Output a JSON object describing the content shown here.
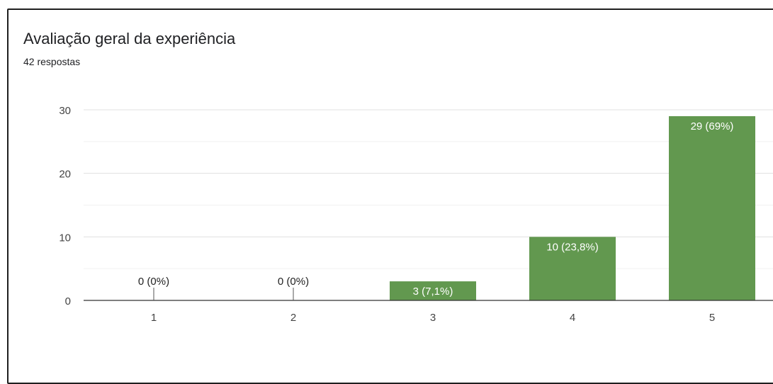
{
  "form": {
    "question": "Avaliação geral da experiência",
    "responses": "42 respostas"
  },
  "colors": {
    "bar": "#62984f",
    "grid_major": "#e0e0e0",
    "grid_minor": "#f1f1f1",
    "axis": "#333333"
  },
  "chart_data": {
    "type": "bar",
    "title": "",
    "categories": [
      "1",
      "2",
      "3",
      "4",
      "5"
    ],
    "values": [
      0,
      0,
      3,
      10,
      29
    ],
    "labels": [
      "0 (0%)",
      "0 (0%)",
      "3 (7,1%)",
      "10 (23,8%)",
      "29 (69%)"
    ],
    "xlabel": "",
    "ylabel": "",
    "ylim": [
      0,
      30
    ],
    "yticks": [
      0,
      10,
      20,
      30
    ],
    "grid": true,
    "legend": "none"
  }
}
